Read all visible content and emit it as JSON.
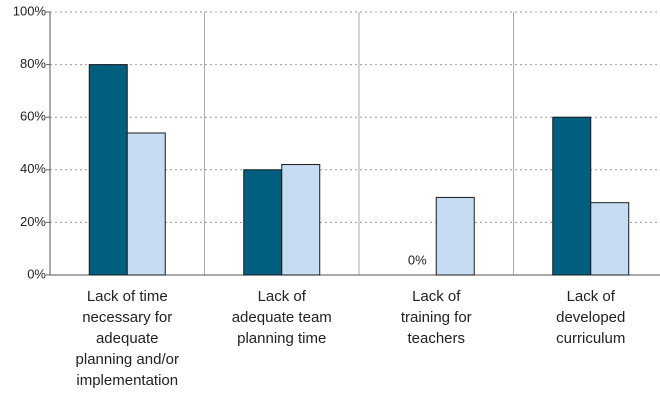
{
  "chart_data": {
    "type": "bar",
    "categories": [
      "Lack of time necessary for adequate planning and/or implementation",
      "Lack of adequate team planning time",
      "Lack of training for teachers",
      "Lack of developed curriculum"
    ],
    "series": [
      {
        "color": "#005f7f",
        "values": [
          80,
          40,
          0,
          60
        ],
        "value_labels": [
          null,
          null,
          "0%",
          null
        ]
      },
      {
        "color": "#c6dcf2",
        "values": [
          54,
          42,
          29.5,
          27.5
        ]
      }
    ],
    "ylim": [
      0,
      100
    ],
    "yticks": [
      {
        "value": 0,
        "label": "0%"
      },
      {
        "value": 20,
        "label": "20%"
      },
      {
        "value": 40,
        "label": "40%"
      },
      {
        "value": 60,
        "label": "60%"
      },
      {
        "value": 80,
        "label": "80%"
      },
      {
        "value": 100,
        "label": "100%"
      }
    ],
    "grid": true
  }
}
